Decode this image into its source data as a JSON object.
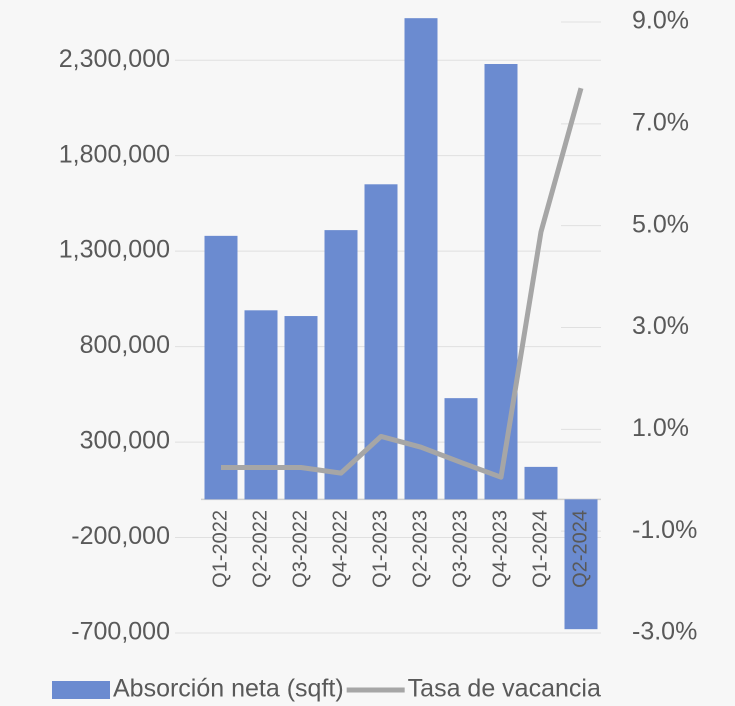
{
  "chart_data": {
    "type": "bar",
    "categories": [
      "Q1-2022",
      "Q2-2022",
      "Q3-2022",
      "Q4-2022",
      "Q1-2023",
      "Q2-2023",
      "Q3-2023",
      "Q4-2023",
      "Q1-2024",
      "Q2-2024"
    ],
    "series": [
      {
        "name": "Absorción neta (sqft)",
        "type": "bar",
        "color": "#6b8bd0",
        "values": [
          1380000,
          990000,
          960000,
          1410000,
          1650000,
          2520000,
          530000,
          2280000,
          170000,
          -680000
        ]
      },
      {
        "name": "Tasa de vacancia",
        "type": "line",
        "axis": "y2",
        "color": "#a6a6a6",
        "values": [
          0.25,
          0.25,
          0.25,
          0.14,
          0.86,
          0.65,
          0.35,
          0.06,
          4.88,
          7.7
        ]
      }
    ],
    "ylim": [
      -700000,
      2500000
    ],
    "yticks": [
      {
        "value": -700000,
        "label": "-700,000"
      },
      {
        "value": -200000,
        "label": "-200,000"
      },
      {
        "value": 300000,
        "label": "300,000"
      },
      {
        "value": 800000,
        "label": "800,000"
      },
      {
        "value": 1300000,
        "label": "1,300,000"
      },
      {
        "value": 1800000,
        "label": "1,800,000"
      },
      {
        "value": 2300000,
        "label": "2,300,000"
      }
    ],
    "y2lim": [
      -3,
      9
    ],
    "y2ticks": [
      {
        "value": -3,
        "label": "-3.0%"
      },
      {
        "value": -1,
        "label": "-1.0%"
      },
      {
        "value": 1,
        "label": "1.0%"
      },
      {
        "value": 3,
        "label": "3.0%"
      },
      {
        "value": 5,
        "label": "5.0%"
      },
      {
        "value": 7,
        "label": "7.0%"
      },
      {
        "value": 9,
        "label": "9.0%"
      }
    ],
    "grid": true,
    "legend": "bottom"
  }
}
